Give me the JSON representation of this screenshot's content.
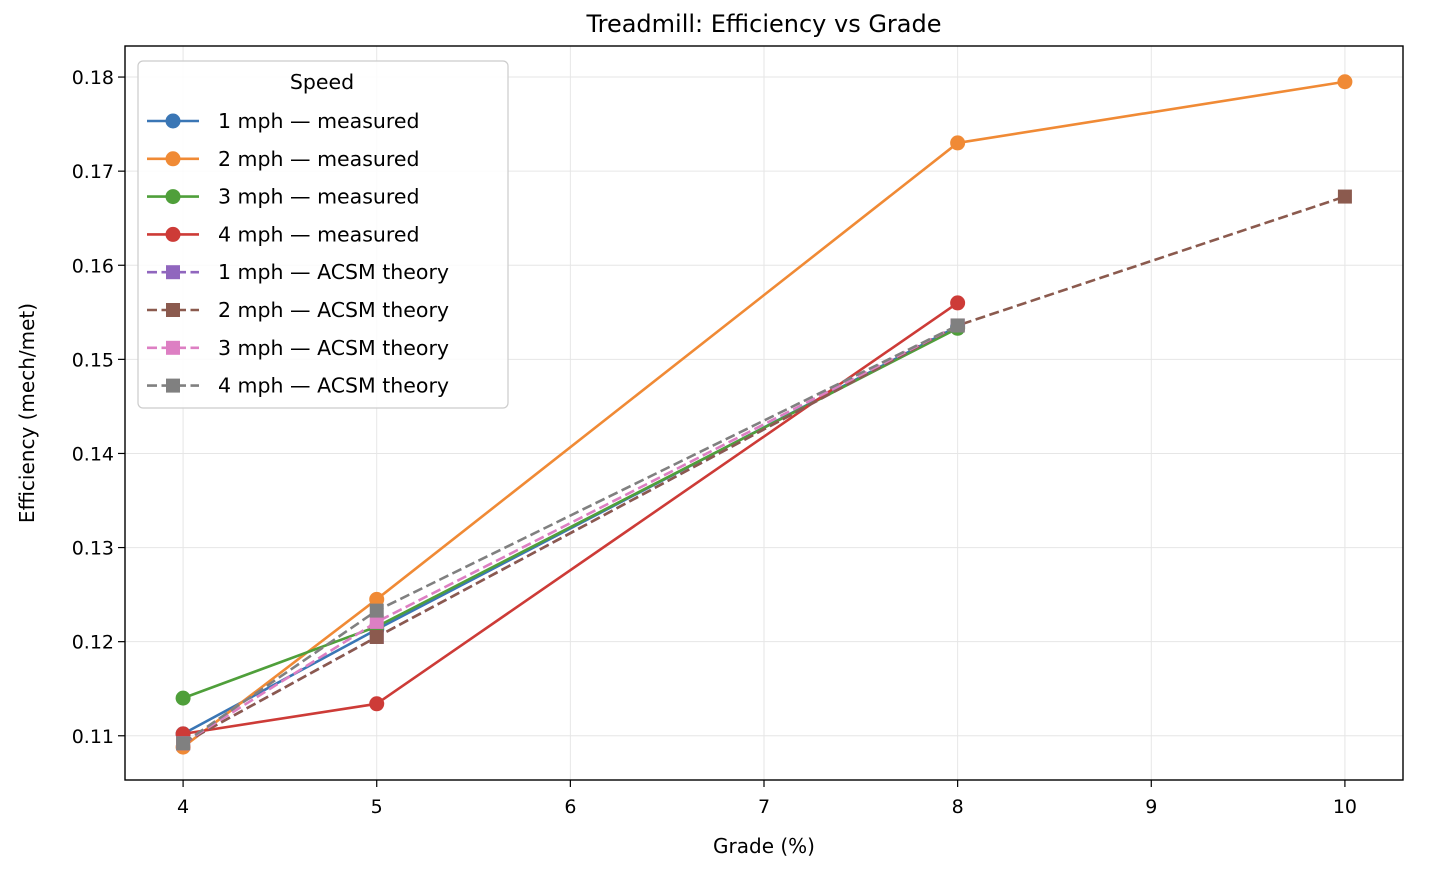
{
  "chart_data": {
    "type": "line",
    "title": "Treadmill: Efficiency vs Grade",
    "xlabel": "Grade (%)",
    "ylabel": "Efficiency (mech/met)",
    "xlim": [
      3.7,
      10.3
    ],
    "ylim": [
      0.1053,
      0.1833
    ],
    "xticks": [
      "4",
      "5",
      "6",
      "7",
      "8",
      "9",
      "10"
    ],
    "yticks": [
      "0.11",
      "0.12",
      "0.13",
      "0.14",
      "0.15",
      "0.16",
      "0.17",
      "0.18"
    ],
    "grid": true,
    "legend": {
      "title": "Speed",
      "placement": "upper left"
    },
    "series": [
      {
        "name": "1 mph — measured",
        "color": "#3a76b5",
        "style": "solid",
        "marker": "circle",
        "x": [
          4,
          5,
          8
        ],
        "y": [
          0.1102,
          0.1213,
          0.1535
        ]
      },
      {
        "name": "2 mph — measured",
        "color": "#f08a35",
        "style": "solid",
        "marker": "circle",
        "x": [
          4,
          5,
          8,
          10
        ],
        "y": [
          0.1088,
          0.1245,
          0.173,
          0.1795
        ]
      },
      {
        "name": "3 mph — measured",
        "color": "#4f9f3a",
        "style": "solid",
        "marker": "circle",
        "x": [
          4,
          5,
          8
        ],
        "y": [
          0.114,
          0.1216,
          0.1533
        ]
      },
      {
        "name": "4 mph — measured",
        "color": "#cd3b37",
        "style": "solid",
        "marker": "circle",
        "x": [
          4,
          5,
          8
        ],
        "y": [
          0.1102,
          0.1134,
          0.156
        ]
      },
      {
        "name": "1 mph — ACSM theory",
        "color": "#9066be",
        "style": "dashed",
        "marker": "square",
        "x": [
          4,
          5,
          8
        ],
        "y": [
          0.1092,
          0.1205,
          0.1536
        ]
      },
      {
        "name": "2 mph — ACSM theory",
        "color": "#8b5a4e",
        "style": "dashed",
        "marker": "square",
        "x": [
          4,
          5,
          8,
          10
        ],
        "y": [
          0.1092,
          0.1205,
          0.1536,
          0.1673
        ]
      },
      {
        "name": "3 mph — ACSM theory",
        "color": "#dd7fc3",
        "style": "dashed",
        "marker": "square",
        "x": [
          4,
          5,
          8
        ],
        "y": [
          0.1092,
          0.1221,
          0.1536
        ]
      },
      {
        "name": "4 mph — ACSM theory",
        "color": "#808080",
        "style": "dashed",
        "marker": "square",
        "x": [
          4,
          5,
          8
        ],
        "y": [
          0.1092,
          0.1233,
          0.1536
        ]
      }
    ]
  }
}
